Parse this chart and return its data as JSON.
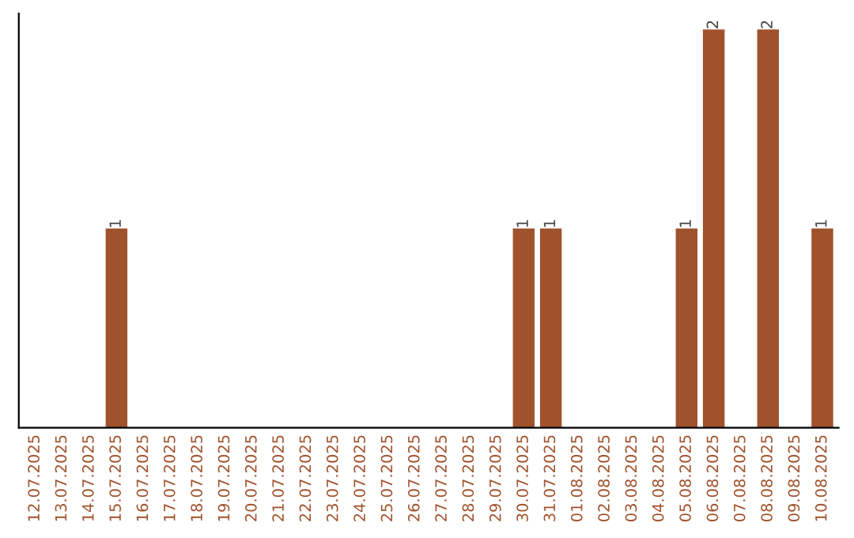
{
  "chart_data": {
    "type": "bar",
    "categories": [
      "12.07.2025",
      "13.07.2025",
      "14.07.2025",
      "15.07.2025",
      "16.07.2025",
      "17.07.2025",
      "18.07.2025",
      "19.07.2025",
      "20.07.2025",
      "21.07.2025",
      "22.07.2025",
      "23.07.2025",
      "24.07.2025",
      "25.07.2025",
      "26.07.2025",
      "27.07.2025",
      "28.07.2025",
      "29.07.2025",
      "30.07.2025",
      "31.07.2025",
      "01.08.2025",
      "02.08.2025",
      "03.08.2025",
      "04.08.2025",
      "05.08.2025",
      "06.08.2025",
      "07.08.2025",
      "08.08.2025",
      "09.08.2025",
      "10.08.2025"
    ],
    "values": [
      0,
      0,
      0,
      1,
      0,
      0,
      0,
      0,
      0,
      0,
      0,
      0,
      0,
      0,
      0,
      0,
      0,
      0,
      1,
      1,
      0,
      0,
      0,
      0,
      1,
      2,
      0,
      2,
      0,
      1
    ],
    "value_labels": [
      null,
      null,
      null,
      "1",
      null,
      null,
      null,
      null,
      null,
      null,
      null,
      null,
      null,
      null,
      null,
      null,
      null,
      null,
      "1",
      "1",
      null,
      null,
      null,
      null,
      "1",
      "2",
      null,
      "2",
      null,
      "1"
    ],
    "color": "#a0522d",
    "grid": false,
    "legend": false
  }
}
